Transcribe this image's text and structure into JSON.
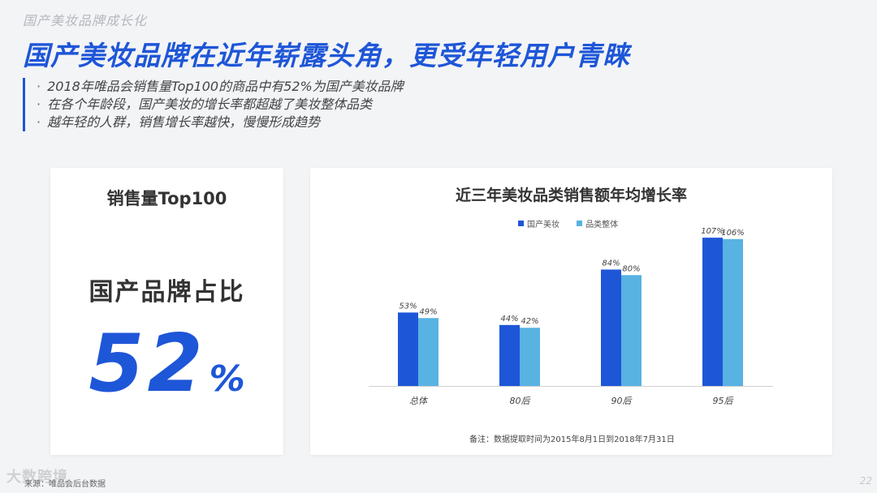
{
  "header": {
    "section": "国产美妆品牌成长化",
    "title": "国产美妆品牌在近年崭露头角，更受年轻用户青睐"
  },
  "bullets": [
    "2018年唯品会销售量Top100的商品中有52%为国产美妆品牌",
    "在各个年龄段，国产美妆的增长率都超越了美妆整体品类",
    "越年轻的人群，销售增长率越快，慢慢形成趋势"
  ],
  "bullet_marker": "·",
  "kpi": {
    "title": "销售量Top100",
    "label": "国产品牌占比",
    "value": "52",
    "unit": "%"
  },
  "chart_data": {
    "type": "bar",
    "title": "近三年美妆品类销售额年均增长率",
    "categories": [
      "总体",
      "80后",
      "90后",
      "95后"
    ],
    "series": [
      {
        "name": "国产美妆",
        "values": [
          53,
          44,
          84,
          107
        ],
        "labels": [
          "53%",
          "44%",
          "84%",
          "107%"
        ],
        "color": "#1e56d8"
      },
      {
        "name": "品类整体",
        "values": [
          49,
          42,
          80,
          106
        ],
        "labels": [
          "49%",
          "42%",
          "80%",
          "106%"
        ],
        "color": "#58b2e2"
      }
    ],
    "ylim": [
      0,
      110
    ],
    "xlabel": "",
    "ylabel": "",
    "grid": false,
    "legend_position": "top",
    "note": "备注：数据提取时间为2015年8月1日到2018年7月31日"
  },
  "footer": {
    "source": "来源：唯品会后台数据",
    "watermark": "大数跨境",
    "page": "22"
  }
}
